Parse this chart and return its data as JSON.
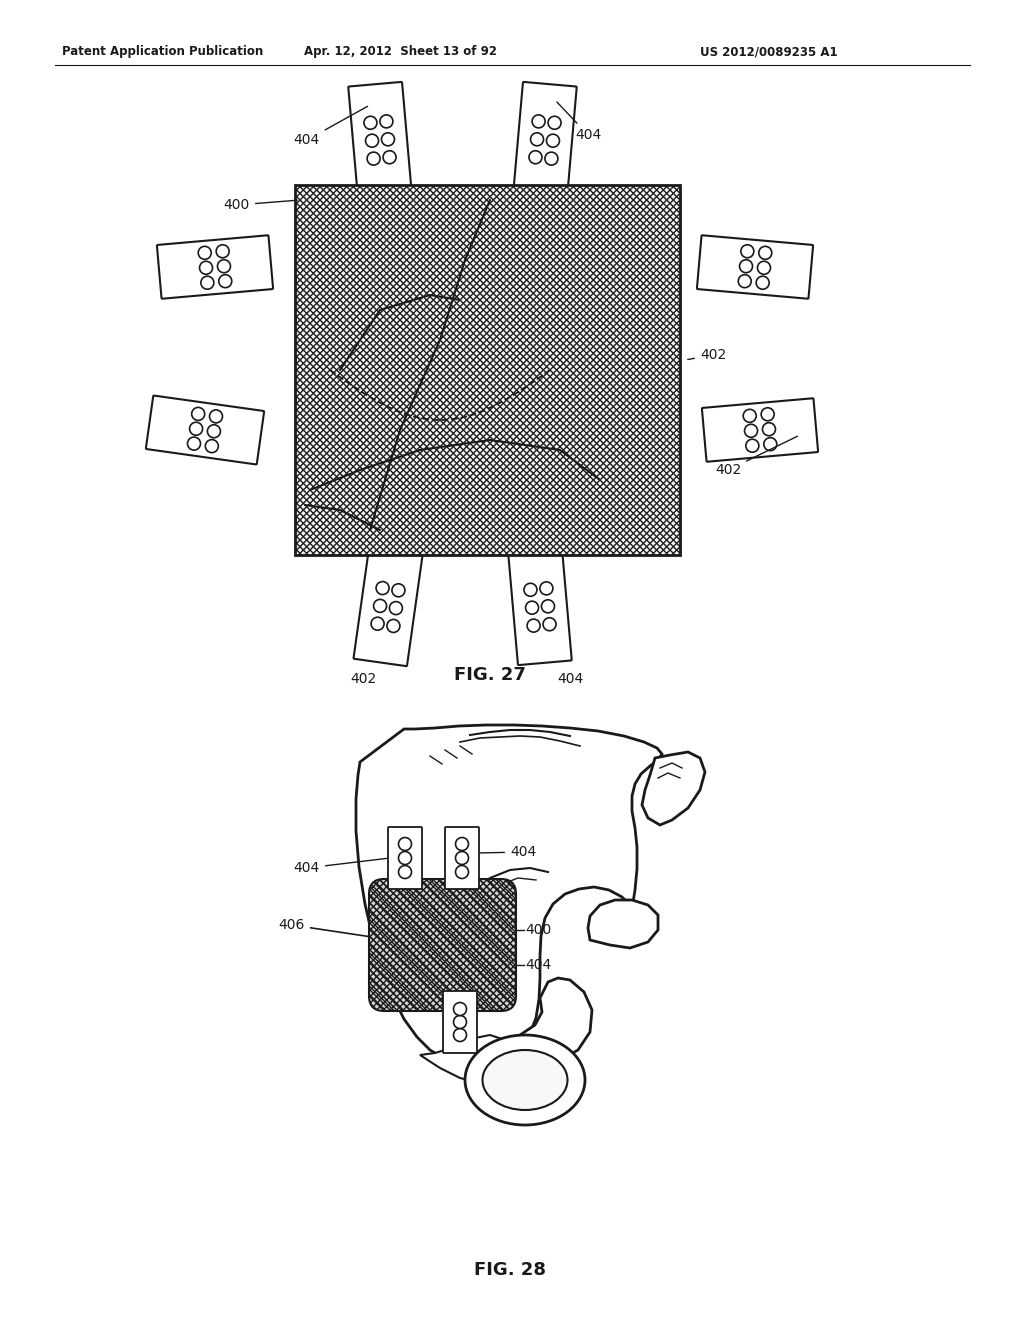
{
  "header_left": "Patent Application Publication",
  "header_mid": "Apr. 12, 2012  Sheet 13 of 92",
  "header_right": "US 2012/0089235 A1",
  "fig27_label": "FIG. 27",
  "fig28_label": "FIG. 28",
  "label_400": "400",
  "label_402": "402",
  "label_404": "404",
  "label_406": "406",
  "bg_color": "#ffffff",
  "line_color": "#1a1a1a"
}
